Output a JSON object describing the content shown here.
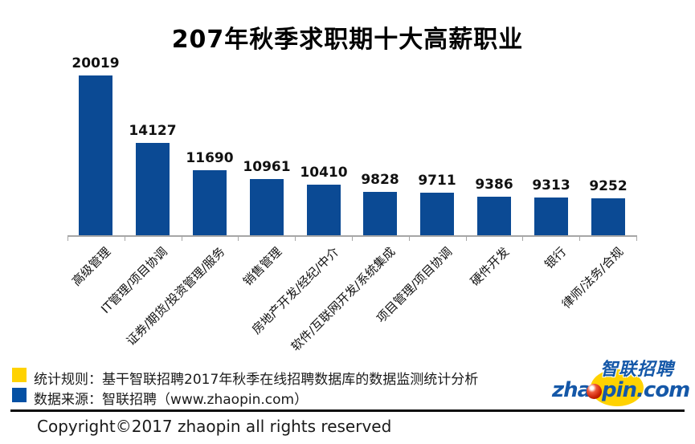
{
  "chart_data": {
    "type": "bar",
    "title": "207年秋季求职期十大高薪职业",
    "categories": [
      "高级管理",
      "IT管理/项目协调",
      "证券/期货/投资管理/服务",
      "销售管理",
      "房地产开发/经纪/中介",
      "软件/互联网开发/系统集成",
      "项目管理/项目协调",
      "硬件开发",
      "银行",
      "律师/法务/合规"
    ],
    "values": [
      20019,
      14127,
      11690,
      10961,
      10410,
      9828,
      9711,
      9386,
      9313,
      9252
    ],
    "value_labels_shown": true,
    "xlabel": "",
    "ylabel": "",
    "ylim": [
      6000,
      20100
    ],
    "grid": false,
    "legend_position": "none",
    "bar_color": "#0b4a94",
    "axis_color": "#a6a6a6"
  },
  "footer": {
    "legend": [
      {
        "swatch_color": "#ffd200",
        "label": "统计规则：基干智联招聘2017年秋季在线招聘数据库的数据监测统计分析"
      },
      {
        "swatch_color": "#0450a4",
        "label": "数据来源：智联招聘（www.zhaopin.com）"
      }
    ],
    "copyright": "Copyright©2017 zhaopin all rights reserved"
  },
  "logo": {
    "latin_prefix": "zha",
    "latin_suffix": "pin.com",
    "cjk": "智联招聘",
    "brand_blue": "#1558a8",
    "brand_yellow": "#ffd200",
    "ball_red": "#c61e02"
  }
}
